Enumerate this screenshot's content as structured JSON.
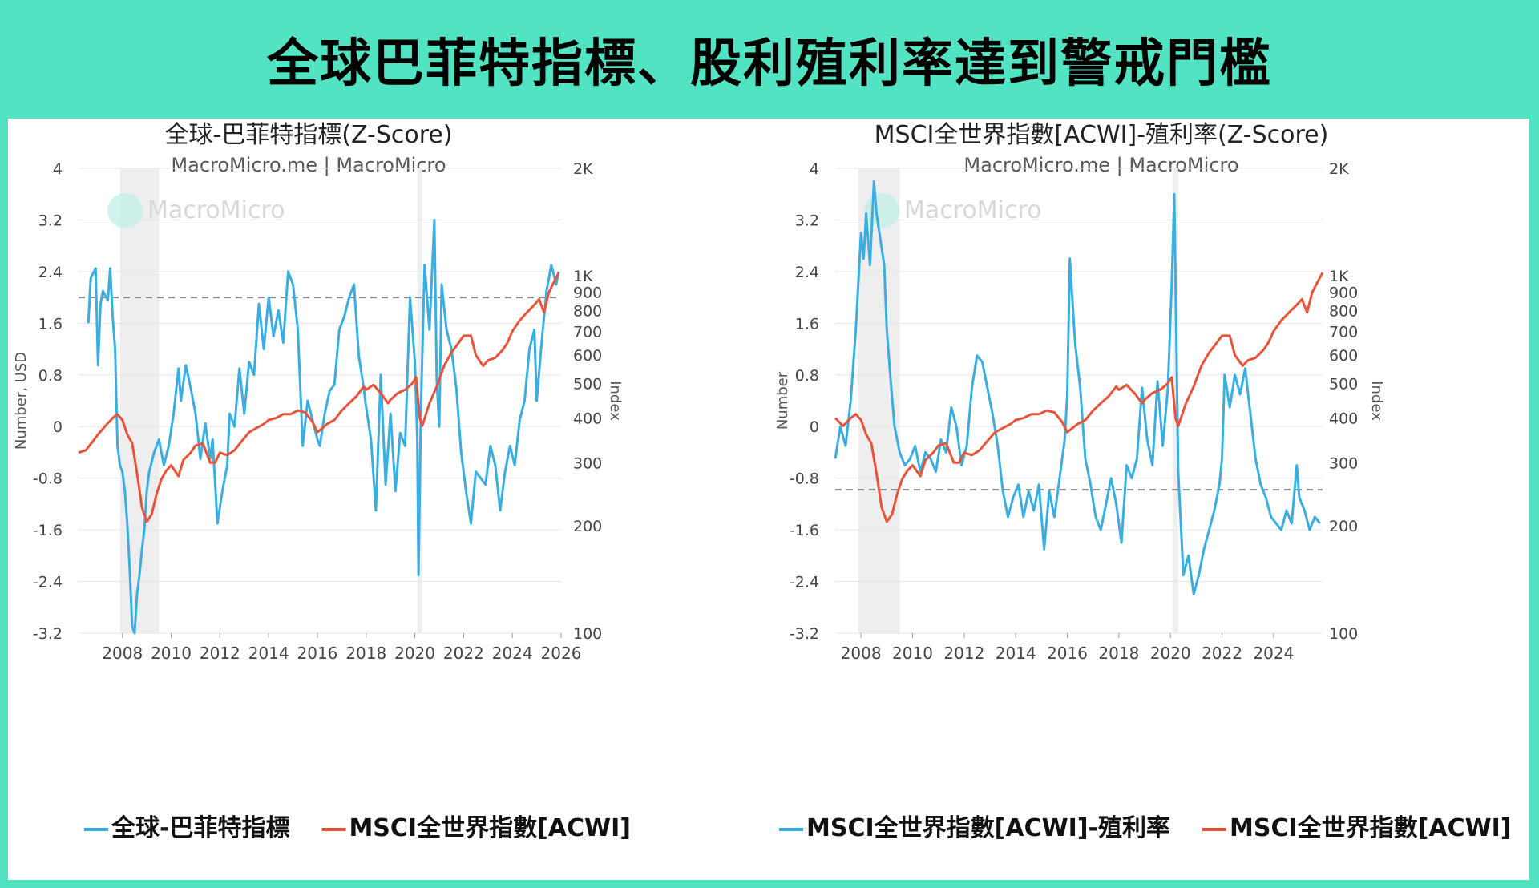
{
  "banner": {
    "title": "全球巴菲特指標、股利殖利率達到警戒門檻"
  },
  "colors": {
    "blue": "#3aaee0",
    "red": "#e8533a",
    "grid": "#e6e6e6",
    "recession": "#eeeeee",
    "threshold": "#888888"
  },
  "chart_data": [
    {
      "type": "line",
      "title": "全球-巴菲特指標(Z-Score)",
      "subtitle": "MacroMicro.me | MacroMicro",
      "watermark": "MacroMicro",
      "ylabel": "Number, USD",
      "y2label": "Index",
      "ylim": [
        -3.2,
        4
      ],
      "yticks": [
        "4",
        "3.2",
        "2.4",
        "1.6",
        "0.8",
        "0",
        "-0.8",
        "-1.6",
        "-2.4",
        "-3.2"
      ],
      "y2scale": "log",
      "y2lim": [
        100,
        2000
      ],
      "y2ticks": [
        {
          "label": "2K",
          "value": 2000
        },
        {
          "label": "1K",
          "value": 1000
        },
        {
          "label": "900",
          "value": 900
        },
        {
          "label": "800",
          "value": 800
        },
        {
          "label": "700",
          "value": 700
        },
        {
          "label": "600",
          "value": 600
        },
        {
          "label": "500",
          "value": 500
        },
        {
          "label": "400",
          "value": 400
        },
        {
          "label": "300",
          "value": 300
        },
        {
          "label": "200",
          "value": 200
        },
        {
          "label": "100",
          "value": 100
        }
      ],
      "xlim": [
        2006.2,
        2026.0
      ],
      "xticks": [
        "2008",
        "2010",
        "2012",
        "2014",
        "2016",
        "2018",
        "2020",
        "2022",
        "2024",
        "2026"
      ],
      "threshold": 2.0,
      "recessions": [
        [
          2007.9,
          2009.5
        ],
        [
          2020.1,
          2020.3
        ]
      ],
      "legend": [
        "全球-巴菲特指標",
        "MSCI全世界指數[ACWI]"
      ],
      "series": [
        {
          "name": "全球-巴菲特指標",
          "axis": "left",
          "color": "#3aaee0",
          "x": [
            2006.6,
            2006.7,
            2006.9,
            2007.0,
            2007.1,
            2007.2,
            2007.4,
            2007.5,
            2007.6,
            2007.7,
            2007.8,
            2007.9,
            2008.0,
            2008.1,
            2008.2,
            2008.3,
            2008.4,
            2008.5,
            2008.6,
            2008.7,
            2008.8,
            2008.9,
            2009.0,
            2009.1,
            2009.3,
            2009.5,
            2009.7,
            2009.9,
            2010.1,
            2010.3,
            2010.4,
            2010.6,
            2010.8,
            2011.0,
            2011.2,
            2011.4,
            2011.6,
            2011.7,
            2011.9,
            2012.1,
            2012.3,
            2012.4,
            2012.6,
            2012.8,
            2013.0,
            2013.2,
            2013.4,
            2013.6,
            2013.8,
            2013.9,
            2014.0,
            2014.2,
            2014.4,
            2014.6,
            2014.8,
            2015.0,
            2015.2,
            2015.4,
            2015.6,
            2015.8,
            2016.0,
            2016.1,
            2016.3,
            2016.5,
            2016.7,
            2016.9,
            2017.1,
            2017.3,
            2017.5,
            2017.7,
            2017.9,
            2018.0,
            2018.2,
            2018.4,
            2018.6,
            2018.8,
            2019.0,
            2019.2,
            2019.4,
            2019.6,
            2019.8,
            2020.0,
            2020.1,
            2020.15,
            2020.25,
            2020.4,
            2020.6,
            2020.8,
            2020.9,
            2021.0,
            2021.1,
            2021.3,
            2021.5,
            2021.7,
            2021.9,
            2022.1,
            2022.3,
            2022.5,
            2022.7,
            2022.9,
            2023.1,
            2023.3,
            2023.5,
            2023.7,
            2023.9,
            2024.1,
            2024.3,
            2024.5,
            2024.7,
            2024.9,
            2025.0,
            2025.2,
            2025.4,
            2025.6,
            2025.8,
            2025.9
          ],
          "values": [
            1.6,
            2.3,
            2.45,
            0.95,
            1.9,
            2.1,
            1.95,
            2.45,
            1.7,
            1.2,
            -0.3,
            -0.6,
            -0.7,
            -1.0,
            -1.5,
            -2.2,
            -3.1,
            -3.2,
            -2.6,
            -2.3,
            -1.9,
            -1.6,
            -1.0,
            -0.7,
            -0.4,
            -0.2,
            -0.6,
            -0.3,
            0.2,
            0.9,
            0.4,
            0.95,
            0.6,
            0.2,
            -0.5,
            0.05,
            -0.5,
            -0.2,
            -1.5,
            -1.0,
            -0.6,
            0.2,
            0.0,
            0.9,
            0.2,
            1.0,
            0.8,
            1.9,
            1.2,
            1.6,
            2.0,
            1.4,
            1.8,
            1.3,
            2.4,
            2.2,
            1.5,
            -0.3,
            0.4,
            0.1,
            -0.2,
            -0.3,
            0.2,
            0.55,
            0.65,
            1.5,
            1.7,
            2.0,
            2.2,
            1.1,
            0.6,
            0.3,
            -0.2,
            -1.3,
            0.8,
            -0.9,
            0.2,
            -1.0,
            -0.1,
            -0.3,
            2.0,
            1.0,
            -0.2,
            -2.3,
            0.3,
            2.5,
            1.5,
            3.2,
            0.7,
            0.0,
            2.2,
            1.5,
            1.2,
            0.6,
            -0.4,
            -1.0,
            -1.5,
            -0.7,
            -0.8,
            -0.9,
            -0.3,
            -0.6,
            -1.3,
            -0.7,
            -0.3,
            -0.6,
            0.1,
            0.4,
            1.2,
            1.5,
            0.4,
            1.3,
            2.1,
            2.5,
            2.2,
            2.4
          ]
        },
        {
          "name": "MSCI全世界指數[ACWI]",
          "axis": "right",
          "color": "#e8533a",
          "x": [
            2006.2,
            2006.5,
            2006.8,
            2007.0,
            2007.3,
            2007.6,
            2007.8,
            2008.0,
            2008.2,
            2008.4,
            2008.6,
            2008.8,
            2009.0,
            2009.2,
            2009.4,
            2009.6,
            2009.8,
            2010.0,
            2010.3,
            2010.5,
            2010.8,
            2011.0,
            2011.3,
            2011.6,
            2011.8,
            2012.0,
            2012.3,
            2012.6,
            2012.9,
            2013.2,
            2013.5,
            2013.8,
            2014.0,
            2014.3,
            2014.6,
            2014.9,
            2015.2,
            2015.5,
            2015.8,
            2016.0,
            2016.1,
            2016.4,
            2016.7,
            2017.0,
            2017.3,
            2017.6,
            2017.9,
            2018.0,
            2018.3,
            2018.6,
            2018.9,
            2019.0,
            2019.3,
            2019.6,
            2019.9,
            2020.05,
            2020.2,
            2020.3,
            2020.6,
            2020.9,
            2021.2,
            2021.5,
            2021.8,
            2022.0,
            2022.3,
            2022.5,
            2022.8,
            2023.0,
            2023.3,
            2023.6,
            2023.8,
            2024.0,
            2024.3,
            2024.6,
            2024.9,
            2025.1,
            2025.3,
            2025.5,
            2025.7,
            2025.9
          ],
          "values": [
            320,
            325,
            345,
            360,
            380,
            400,
            410,
            395,
            360,
            340,
            280,
            225,
            205,
            215,
            245,
            270,
            285,
            295,
            275,
            305,
            320,
            335,
            340,
            300,
            300,
            320,
            315,
            325,
            345,
            365,
            375,
            385,
            395,
            400,
            410,
            410,
            420,
            415,
            390,
            365,
            370,
            385,
            395,
            420,
            440,
            460,
            490,
            480,
            495,
            470,
            440,
            450,
            470,
            480,
            500,
            520,
            400,
            380,
            440,
            490,
            560,
            610,
            650,
            680,
            680,
            600,
            560,
            580,
            590,
            620,
            650,
            700,
            750,
            790,
            830,
            860,
            790,
            900,
            960,
            1020
          ]
        }
      ]
    },
    {
      "type": "line",
      "title": "MSCI全世界指數[ACWI]-殖利率(Z-Score)",
      "subtitle": "MacroMicro.me | MacroMicro",
      "watermark": "MacroMicro",
      "ylabel": "Number",
      "y2label": "Index",
      "ylim": [
        -3.2,
        4
      ],
      "yticks": [
        "4",
        "3.2",
        "2.4",
        "1.6",
        "0.8",
        "0",
        "-0.8",
        "-1.6",
        "-2.4",
        "-3.2"
      ],
      "y2scale": "log",
      "y2lim": [
        100,
        2000
      ],
      "y2ticks": [
        {
          "label": "2K",
          "value": 2000
        },
        {
          "label": "1K",
          "value": 1000
        },
        {
          "label": "900",
          "value": 900
        },
        {
          "label": "800",
          "value": 800
        },
        {
          "label": "700",
          "value": 700
        },
        {
          "label": "600",
          "value": 600
        },
        {
          "label": "500",
          "value": 500
        },
        {
          "label": "400",
          "value": 400
        },
        {
          "label": "300",
          "value": 300
        },
        {
          "label": "200",
          "value": 200
        },
        {
          "label": "100",
          "value": 100
        }
      ],
      "xlim": [
        2007.0,
        2025.9
      ],
      "xticks": [
        "2008",
        "2010",
        "2012",
        "2014",
        "2016",
        "2018",
        "2020",
        "2022",
        "2024"
      ],
      "threshold": -0.98,
      "recessions": [
        [
          2007.9,
          2009.5
        ],
        [
          2020.1,
          2020.3
        ]
      ],
      "legend": [
        "MSCI全世界指數[ACWI]-殖利率",
        "MSCI全世界指數[ACWI]"
      ],
      "series": [
        {
          "name": "MSCI全世界指數[ACWI]-殖利率",
          "axis": "left",
          "color": "#3aaee0",
          "x": [
            2007.0,
            2007.2,
            2007.4,
            2007.6,
            2007.8,
            2008.0,
            2008.1,
            2008.2,
            2008.35,
            2008.5,
            2008.6,
            2008.75,
            2008.9,
            2009.0,
            2009.15,
            2009.3,
            2009.5,
            2009.7,
            2009.9,
            2010.1,
            2010.3,
            2010.5,
            2010.7,
            2010.9,
            2011.1,
            2011.3,
            2011.5,
            2011.7,
            2011.9,
            2012.1,
            2012.3,
            2012.5,
            2012.7,
            2012.9,
            2013.1,
            2013.3,
            2013.5,
            2013.7,
            2013.9,
            2014.1,
            2014.3,
            2014.5,
            2014.7,
            2014.9,
            2015.1,
            2015.3,
            2015.5,
            2015.7,
            2015.9,
            2016.0,
            2016.1,
            2016.3,
            2016.5,
            2016.7,
            2016.9,
            2017.1,
            2017.3,
            2017.5,
            2017.7,
            2017.9,
            2018.1,
            2018.3,
            2018.5,
            2018.7,
            2018.9,
            2019.1,
            2019.3,
            2019.5,
            2019.7,
            2019.9,
            2020.05,
            2020.15,
            2020.3,
            2020.5,
            2020.7,
            2020.9,
            2021.1,
            2021.3,
            2021.5,
            2021.7,
            2021.9,
            2022.0,
            2022.1,
            2022.3,
            2022.5,
            2022.7,
            2022.9,
            2023.1,
            2023.3,
            2023.5,
            2023.7,
            2023.9,
            2024.1,
            2024.3,
            2024.5,
            2024.7,
            2024.9,
            2025.0,
            2025.2,
            2025.4,
            2025.6,
            2025.8
          ],
          "values": [
            -0.5,
            0.0,
            -0.3,
            0.4,
            1.5,
            3.0,
            2.6,
            3.3,
            2.5,
            3.8,
            3.3,
            2.9,
            2.5,
            1.5,
            0.7,
            0.0,
            -0.4,
            -0.6,
            -0.5,
            -0.3,
            -0.7,
            -0.4,
            -0.5,
            -0.7,
            -0.2,
            -0.4,
            0.3,
            0.0,
            -0.6,
            -0.3,
            0.6,
            1.1,
            1.0,
            0.6,
            0.2,
            -0.3,
            -1.0,
            -1.4,
            -1.1,
            -0.9,
            -1.4,
            -1.0,
            -1.3,
            -0.9,
            -1.9,
            -1.0,
            -1.4,
            -0.8,
            -0.2,
            0.5,
            2.6,
            1.3,
            0.6,
            -0.5,
            -0.9,
            -1.4,
            -1.6,
            -1.2,
            -0.8,
            -1.2,
            -1.8,
            -0.6,
            -0.8,
            -0.5,
            0.6,
            -0.2,
            -0.6,
            0.7,
            -0.3,
            0.6,
            2.2,
            3.6,
            -0.7,
            -2.3,
            -2.0,
            -2.6,
            -2.3,
            -1.9,
            -1.6,
            -1.3,
            -0.9,
            -0.5,
            0.8,
            0.3,
            0.8,
            0.5,
            0.9,
            0.2,
            -0.5,
            -0.9,
            -1.1,
            -1.4,
            -1.5,
            -1.6,
            -1.3,
            -1.5,
            -0.6,
            -1.1,
            -1.3,
            -1.6,
            -1.4,
            -1.5
          ]
        },
        {
          "name": "MSCI全世界指數[ACWI]",
          "axis": "right",
          "color": "#e8533a",
          "x": [
            2007.0,
            2007.3,
            2007.6,
            2007.8,
            2008.0,
            2008.2,
            2008.4,
            2008.6,
            2008.8,
            2009.0,
            2009.2,
            2009.4,
            2009.6,
            2009.8,
            2010.0,
            2010.3,
            2010.5,
            2010.8,
            2011.0,
            2011.3,
            2011.6,
            2011.8,
            2012.0,
            2012.3,
            2012.6,
            2012.9,
            2013.2,
            2013.5,
            2013.8,
            2014.0,
            2014.3,
            2014.6,
            2014.9,
            2015.2,
            2015.5,
            2015.8,
            2016.0,
            2016.1,
            2016.4,
            2016.7,
            2017.0,
            2017.3,
            2017.6,
            2017.9,
            2018.0,
            2018.3,
            2018.6,
            2018.9,
            2019.0,
            2019.3,
            2019.6,
            2019.9,
            2020.05,
            2020.2,
            2020.3,
            2020.6,
            2020.9,
            2021.2,
            2021.5,
            2021.8,
            2022.0,
            2022.3,
            2022.5,
            2022.8,
            2023.0,
            2023.3,
            2023.6,
            2023.8,
            2024.0,
            2024.3,
            2024.6,
            2024.9,
            2025.1,
            2025.3,
            2025.5,
            2025.7,
            2025.9
          ],
          "values": [
            400,
            380,
            400,
            410,
            395,
            360,
            340,
            280,
            225,
            205,
            215,
            245,
            270,
            285,
            295,
            275,
            305,
            320,
            335,
            340,
            300,
            300,
            320,
            315,
            325,
            345,
            365,
            375,
            385,
            395,
            400,
            410,
            410,
            420,
            415,
            390,
            365,
            370,
            385,
            395,
            420,
            440,
            460,
            490,
            480,
            495,
            470,
            440,
            450,
            470,
            480,
            500,
            520,
            400,
            380,
            440,
            490,
            560,
            610,
            650,
            680,
            680,
            600,
            560,
            580,
            590,
            620,
            650,
            700,
            750,
            790,
            830,
            860,
            790,
            900,
            960,
            1020
          ]
        }
      ]
    }
  ]
}
